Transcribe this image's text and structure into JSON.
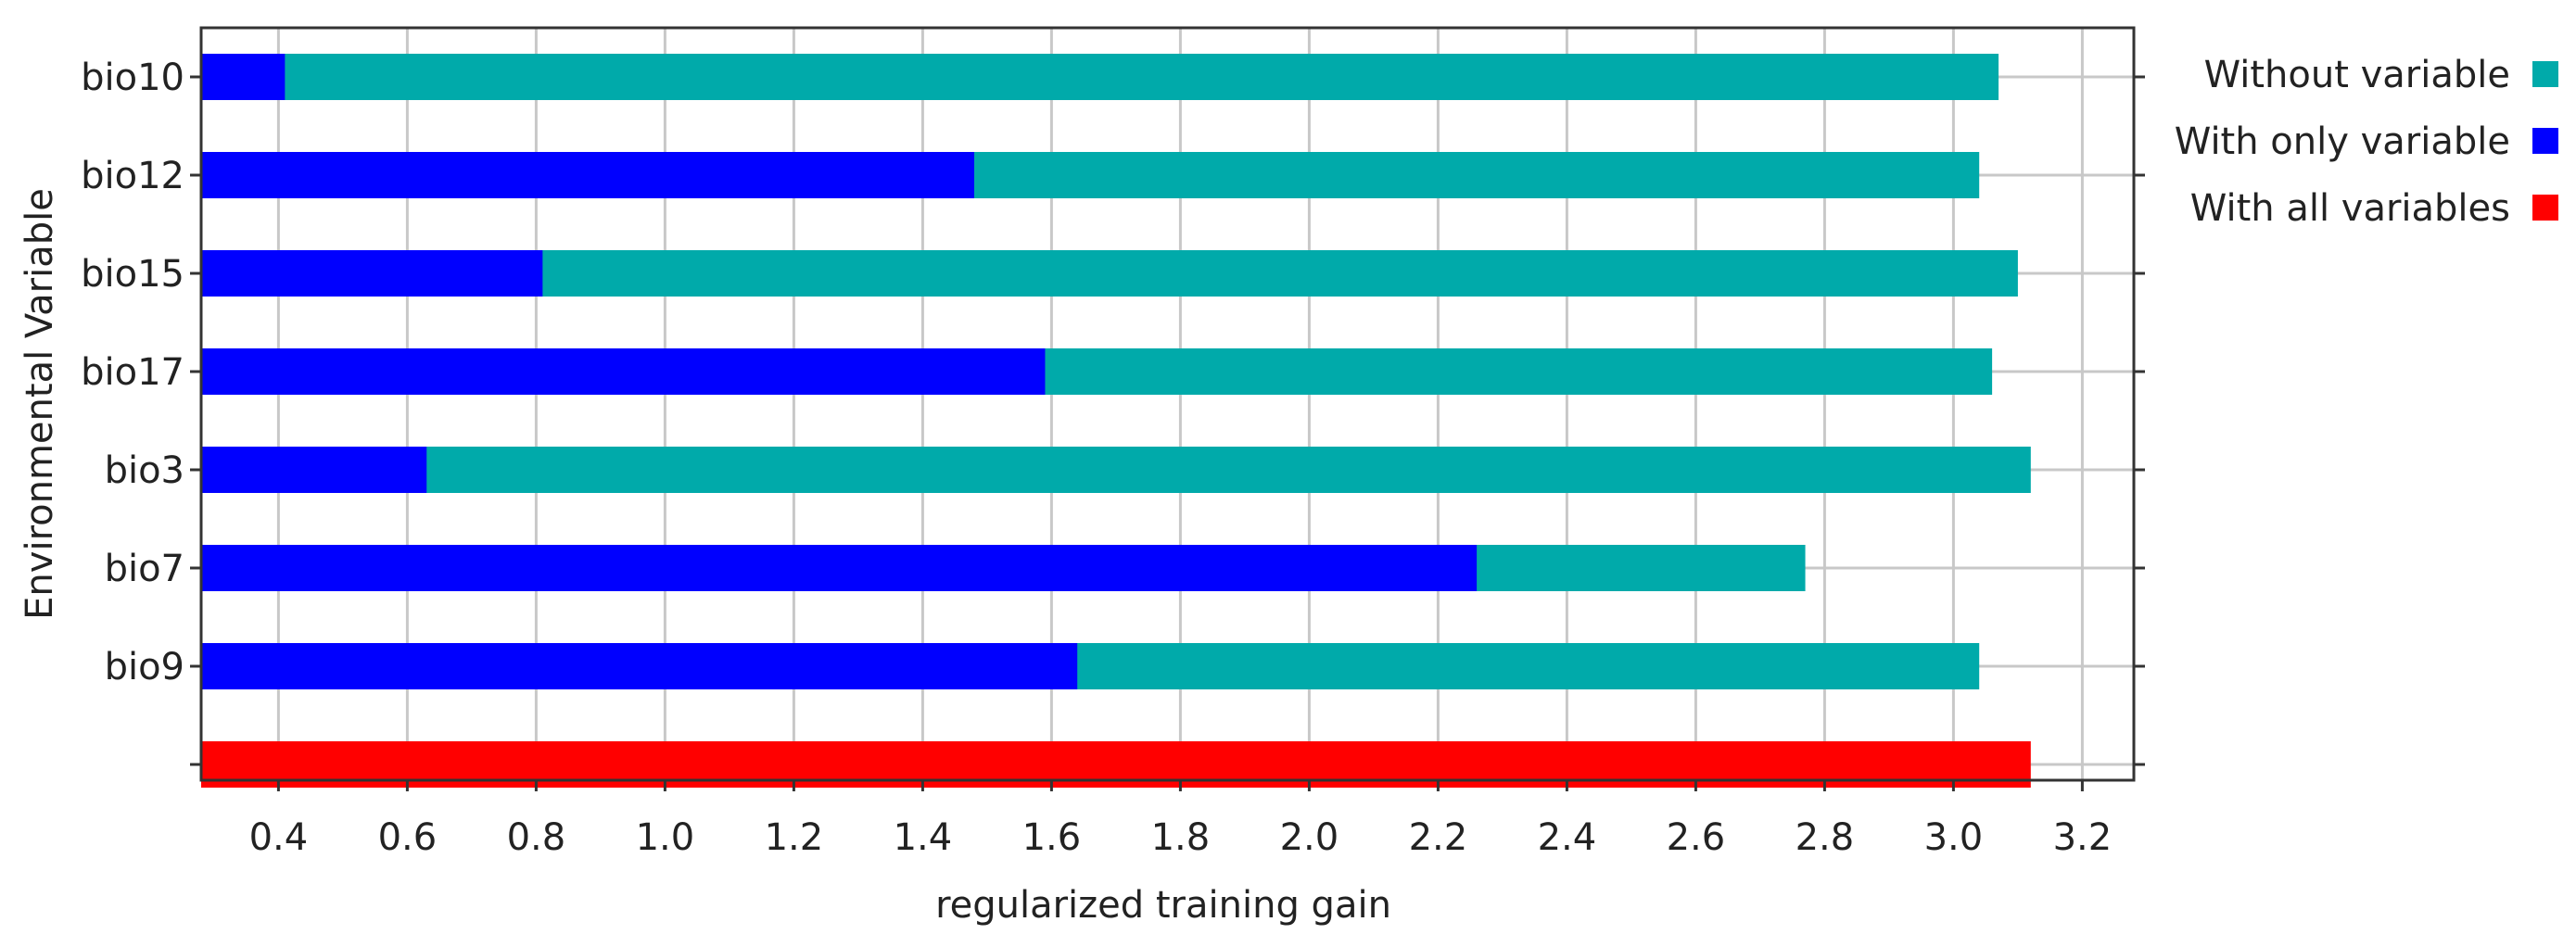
{
  "chart_data": {
    "type": "bar",
    "orientation": "horizontal",
    "title": "",
    "xlabel": "regularized training gain",
    "ylabel": "Environmental Variable",
    "xlim": [
      0.28,
      3.28
    ],
    "xticks": [
      0.4,
      0.6,
      0.8,
      1.0,
      1.2,
      1.4,
      1.6,
      1.8,
      2.0,
      2.2,
      2.4,
      2.6,
      2.8,
      3.0,
      3.2
    ],
    "xtick_labels": [
      "0.4",
      "0.6",
      "0.8",
      "1.0",
      "1.2",
      "1.4",
      "1.6",
      "1.8",
      "2.0",
      "2.2",
      "2.4",
      "2.6",
      "2.8",
      "3.0",
      "3.2"
    ],
    "grid": true,
    "legend_position": "right",
    "categories": [
      "bio10",
      "bio12",
      "bio15",
      "bio17",
      "bio3",
      "bio7",
      "bio9"
    ],
    "series": [
      {
        "name": "Without variable",
        "color": "#00aaaa",
        "values": [
          3.07,
          3.04,
          3.1,
          3.06,
          3.12,
          2.77,
          3.04
        ]
      },
      {
        "name": "With only variable",
        "color": "#0000ff",
        "values": [
          0.41,
          1.48,
          0.81,
          1.59,
          0.63,
          2.26,
          1.64
        ]
      }
    ],
    "all_variables": {
      "name": "With all variables",
      "color": "#ff0000",
      "value": 3.12
    }
  }
}
